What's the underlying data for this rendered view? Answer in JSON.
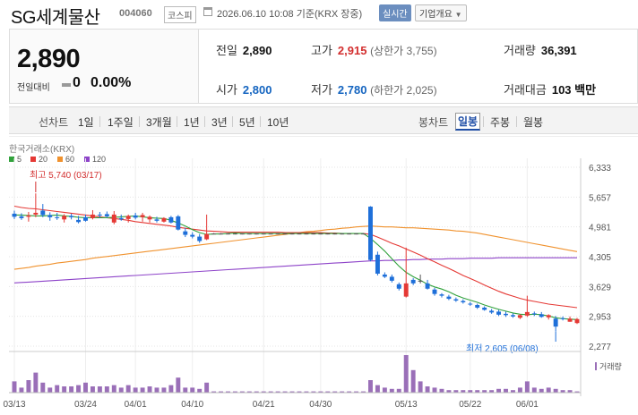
{
  "header": {
    "title": "SG세계물산",
    "code": "004060",
    "market": "코스피",
    "datetime": "2026.06.10 10:08",
    "basis": "기준(KRX 장중)",
    "realtime": "실시간",
    "company_info": "기업개요"
  },
  "summary": {
    "price": "2,890",
    "change_label": "전일대비",
    "change_value": "0",
    "change_pct": "0.00%",
    "prev_label": "전일",
    "prev_value": "2,890",
    "high_label": "고가",
    "high_value": "2,915",
    "upper_limit": "(상한가 3,755)",
    "volume_label": "거래량",
    "volume_value": "36,391",
    "open_label": "시가",
    "open_value": "2,800",
    "low_label": "저가",
    "low_value": "2,780",
    "lower_limit": "(하한가 2,025)",
    "amount_label": "거래대금",
    "amount_value": "103 백만"
  },
  "tabs": {
    "line_head": "선차트",
    "line": [
      "1일",
      "1주일",
      "3개월",
      "1년",
      "3년",
      "5년",
      "10년"
    ],
    "candle_head": "봉차트",
    "candle": [
      "일봉",
      "주봉",
      "월봉"
    ],
    "selected": "일봉"
  },
  "chart_data": {
    "type": "candlestick",
    "source": "한국거래소(KRX)",
    "legend": [
      {
        "name": "5",
        "color": "#31a23c"
      },
      {
        "name": "20",
        "color": "#e53935"
      },
      {
        "name": "60",
        "color": "#f0922e"
      },
      {
        "name": "120",
        "color": "#8e44c9"
      }
    ],
    "y_ticks": [
      6333,
      5657,
      4981,
      4305,
      3629,
      2953,
      2277
    ],
    "x_ticks": [
      "03/13",
      "03/24",
      "04/01",
      "04/10",
      "04/21",
      "04/30",
      "05/13",
      "05/22",
      "06/01"
    ],
    "high_note": "최고 5,740 (03/17)",
    "low_note": "최저 2,605 (06/08)",
    "volume_label": "거래량",
    "colors": {
      "up": "#e53935",
      "down": "#1e6fd9",
      "flat": "#555555"
    },
    "ohlc": [
      [
        5280,
        5350,
        5160,
        5210
      ],
      [
        5220,
        5290,
        5140,
        5180
      ],
      [
        5210,
        5320,
        5100,
        5240
      ],
      [
        5260,
        5740,
        5200,
        5300
      ],
      [
        5350,
        5500,
        5200,
        5250
      ],
      [
        5250,
        5310,
        5120,
        5200
      ],
      [
        5200,
        5300,
        5140,
        5180
      ],
      [
        5150,
        5270,
        5080,
        5230
      ],
      [
        5230,
        5280,
        5150,
        5200
      ],
      [
        5140,
        5230,
        5060,
        5090
      ],
      [
        5200,
        5260,
        5100,
        5120
      ],
      [
        5180,
        5360,
        5150,
        5260
      ],
      [
        5260,
        5320,
        5180,
        5250
      ],
      [
        5270,
        5330,
        5190,
        5220
      ],
      [
        5080,
        5340,
        5040,
        5260
      ],
      [
        5180,
        5260,
        5120,
        5150
      ],
      [
        5160,
        5260,
        5080,
        5230
      ],
      [
        5240,
        5300,
        5150,
        5190
      ],
      [
        5200,
        5300,
        5100,
        5250
      ],
      [
        5150,
        5240,
        5080,
        5210
      ],
      [
        5150,
        5210,
        5080,
        5120
      ],
      [
        5100,
        5200,
        5080,
        5180
      ],
      [
        5200,
        5230,
        5060,
        5080
      ],
      [
        5220,
        5250,
        4900,
        4920
      ],
      [
        4880,
        4960,
        4750,
        4800
      ],
      [
        4800,
        4860,
        4720,
        4760
      ],
      [
        4760,
        4820,
        4620,
        4660
      ],
      [
        4700,
        5260,
        4680,
        4820
      ],
      [
        4830,
        4840,
        4810,
        4830
      ],
      [
        4830,
        4840,
        4810,
        4830
      ],
      [
        4830,
        4840,
        4810,
        4830
      ],
      [
        4830,
        4840,
        4810,
        4830
      ],
      [
        4830,
        4840,
        4810,
        4830
      ],
      [
        4830,
        4840,
        4810,
        4830
      ],
      [
        4830,
        4840,
        4810,
        4830
      ],
      [
        4830,
        4840,
        4810,
        4830
      ],
      [
        4830,
        4840,
        4810,
        4830
      ],
      [
        4830,
        4840,
        4810,
        4830
      ],
      [
        4830,
        4840,
        4810,
        4830
      ],
      [
        4830,
        4840,
        4810,
        4830
      ],
      [
        4830,
        4840,
        4810,
        4830
      ],
      [
        4830,
        4840,
        4810,
        4830
      ],
      [
        4830,
        4840,
        4810,
        4830
      ],
      [
        4830,
        4840,
        4810,
        4830
      ],
      [
        4830,
        4840,
        4810,
        4830
      ],
      [
        4830,
        4840,
        4810,
        4830
      ],
      [
        4830,
        4840,
        4810,
        4830
      ],
      [
        4830,
        4840,
        4810,
        4830
      ],
      [
        4830,
        4840,
        4810,
        4830
      ],
      [
        4830,
        4840,
        4810,
        4830
      ],
      [
        5440,
        5450,
        4200,
        4230
      ],
      [
        4350,
        4420,
        3880,
        3920
      ],
      [
        3900,
        3950,
        3820,
        3850
      ],
      [
        3850,
        3900,
        3720,
        3760
      ],
      [
        3680,
        3720,
        3540,
        3580
      ],
      [
        3400,
        4510,
        3380,
        3700
      ],
      [
        3780,
        3820,
        3660,
        3700
      ],
      [
        3760,
        3900,
        3700,
        3760
      ],
      [
        3700,
        3780,
        3560,
        3580
      ],
      [
        3560,
        3600,
        3420,
        3460
      ],
      [
        3450,
        3480,
        3380,
        3420
      ],
      [
        3400,
        3440,
        3320,
        3350
      ],
      [
        3340,
        3380,
        3280,
        3310
      ],
      [
        3300,
        3340,
        3240,
        3270
      ],
      [
        3240,
        3280,
        3190,
        3220
      ],
      [
        3210,
        3240,
        3120,
        3150
      ],
      [
        3150,
        3180,
        3080,
        3100
      ],
      [
        3080,
        3120,
        3010,
        3040
      ],
      [
        3060,
        3100,
        2960,
        2990
      ],
      [
        3010,
        3060,
        2940,
        2980
      ],
      [
        2980,
        3020,
        2920,
        2950
      ],
      [
        2920,
        3000,
        2890,
        2980
      ],
      [
        2970,
        3420,
        2940,
        3050
      ],
      [
        3020,
        3060,
        2960,
        3000
      ],
      [
        3000,
        3050,
        2920,
        2940
      ],
      [
        2930,
        3000,
        2880,
        2980
      ],
      [
        2900,
        2960,
        2605,
        2720
      ],
      [
        2910,
        2950,
        2860,
        2900
      ],
      [
        2830,
        2950,
        2830,
        2900
      ],
      [
        2800,
        2915,
        2780,
        2890
      ]
    ],
    "ma5": [
      5250,
      5250,
      5240,
      5230,
      5230,
      5240,
      5250,
      5230,
      5220,
      5200,
      5190,
      5190,
      5190,
      5190,
      5200,
      5210,
      5220,
      5230,
      5210,
      5190,
      5180,
      5170,
      5130,
      5070,
      5000,
      4920,
      4850,
      4810,
      4820,
      4820,
      4830,
      4840,
      4830,
      4830,
      4830,
      4830,
      4830,
      4830,
      4830,
      4830,
      4830,
      4830,
      4830,
      4830,
      4830,
      4830,
      4830,
      4830,
      4830,
      4830,
      4720,
      4580,
      4430,
      4260,
      4090,
      3950,
      3850,
      3770,
      3680,
      3620,
      3570,
      3510,
      3430,
      3370,
      3320,
      3270,
      3210,
      3160,
      3110,
      3070,
      3030,
      3000,
      2990,
      3000,
      2990,
      2960,
      2920,
      2900,
      2890,
      2880
    ],
    "ma20": [
      5450,
      5420,
      5400,
      5390,
      5370,
      5350,
      5330,
      5310,
      5290,
      5270,
      5250,
      5230,
      5210,
      5190,
      5170,
      5150,
      5130,
      5100,
      5080,
      5060,
      5040,
      5020,
      5000,
      4970,
      4950,
      4930,
      4910,
      4890,
      4880,
      4870,
      4860,
      4860,
      4860,
      4860,
      4860,
      4860,
      4860,
      4860,
      4850,
      4850,
      4850,
      4850,
      4850,
      4850,
      4840,
      4840,
      4830,
      4830,
      4830,
      4830,
      4810,
      4750,
      4680,
      4610,
      4550,
      4480,
      4410,
      4340,
      4260,
      4190,
      4110,
      4040,
      3960,
      3880,
      3810,
      3740,
      3660,
      3590,
      3520,
      3460,
      3410,
      3360,
      3320,
      3290,
      3260,
      3230,
      3210,
      3190,
      3170,
      3150
    ],
    "ma60": [
      4020,
      4040,
      4060,
      4090,
      4110,
      4130,
      4160,
      4180,
      4200,
      4220,
      4240,
      4270,
      4290,
      4310,
      4330,
      4350,
      4370,
      4390,
      4410,
      4430,
      4450,
      4470,
      4490,
      4510,
      4530,
      4550,
      4570,
      4590,
      4610,
      4630,
      4650,
      4670,
      4690,
      4710,
      4730,
      4750,
      4770,
      4790,
      4810,
      4830,
      4850,
      4870,
      4880,
      4900,
      4920,
      4930,
      4950,
      4960,
      4980,
      4990,
      5000,
      4990,
      4980,
      4980,
      4970,
      4960,
      4960,
      4950,
      4940,
      4930,
      4920,
      4910,
      4890,
      4880,
      4860,
      4840,
      4810,
      4780,
      4750,
      4720,
      4690,
      4660,
      4630,
      4600,
      4570,
      4540,
      4510,
      4480,
      4450,
      4420
    ],
    "ma120": [
      3710,
      3720,
      3730,
      3740,
      3750,
      3760,
      3770,
      3780,
      3790,
      3800,
      3810,
      3820,
      3830,
      3840,
      3850,
      3860,
      3870,
      3880,
      3890,
      3900,
      3910,
      3920,
      3930,
      3940,
      3950,
      3960,
      3970,
      3980,
      3990,
      4000,
      4010,
      4020,
      4030,
      4040,
      4050,
      4060,
      4070,
      4080,
      4090,
      4100,
      4110,
      4120,
      4130,
      4140,
      4150,
      4160,
      4170,
      4180,
      4190,
      4200,
      4210,
      4210,
      4220,
      4220,
      4230,
      4230,
      4240,
      4240,
      4250,
      4250,
      4250,
      4260,
      4260,
      4260,
      4270,
      4270,
      4270,
      4270,
      4280,
      4280,
      4280,
      4280,
      4280,
      4280,
      4280,
      4280,
      4280,
      4280,
      4280,
      4280
    ],
    "volume": [
      9,
      4,
      10,
      16,
      8,
      4,
      6,
      5,
      5,
      6,
      8,
      5,
      5,
      5,
      6,
      4,
      6,
      4,
      4,
      5,
      4,
      4,
      6,
      12,
      4,
      4,
      3,
      8,
      1,
      1,
      1,
      1,
      1,
      1,
      1,
      1,
      1,
      1,
      1,
      1,
      1,
      1,
      1,
      1,
      1,
      1,
      1,
      1,
      1,
      1,
      10,
      6,
      4,
      3,
      3,
      30,
      18,
      9,
      5,
      4,
      3,
      2,
      2,
      2,
      2,
      2,
      2,
      2,
      3,
      3,
      2,
      4,
      9,
      4,
      3,
      4,
      3,
      2,
      2,
      1
    ],
    "volume_max": 30
  }
}
